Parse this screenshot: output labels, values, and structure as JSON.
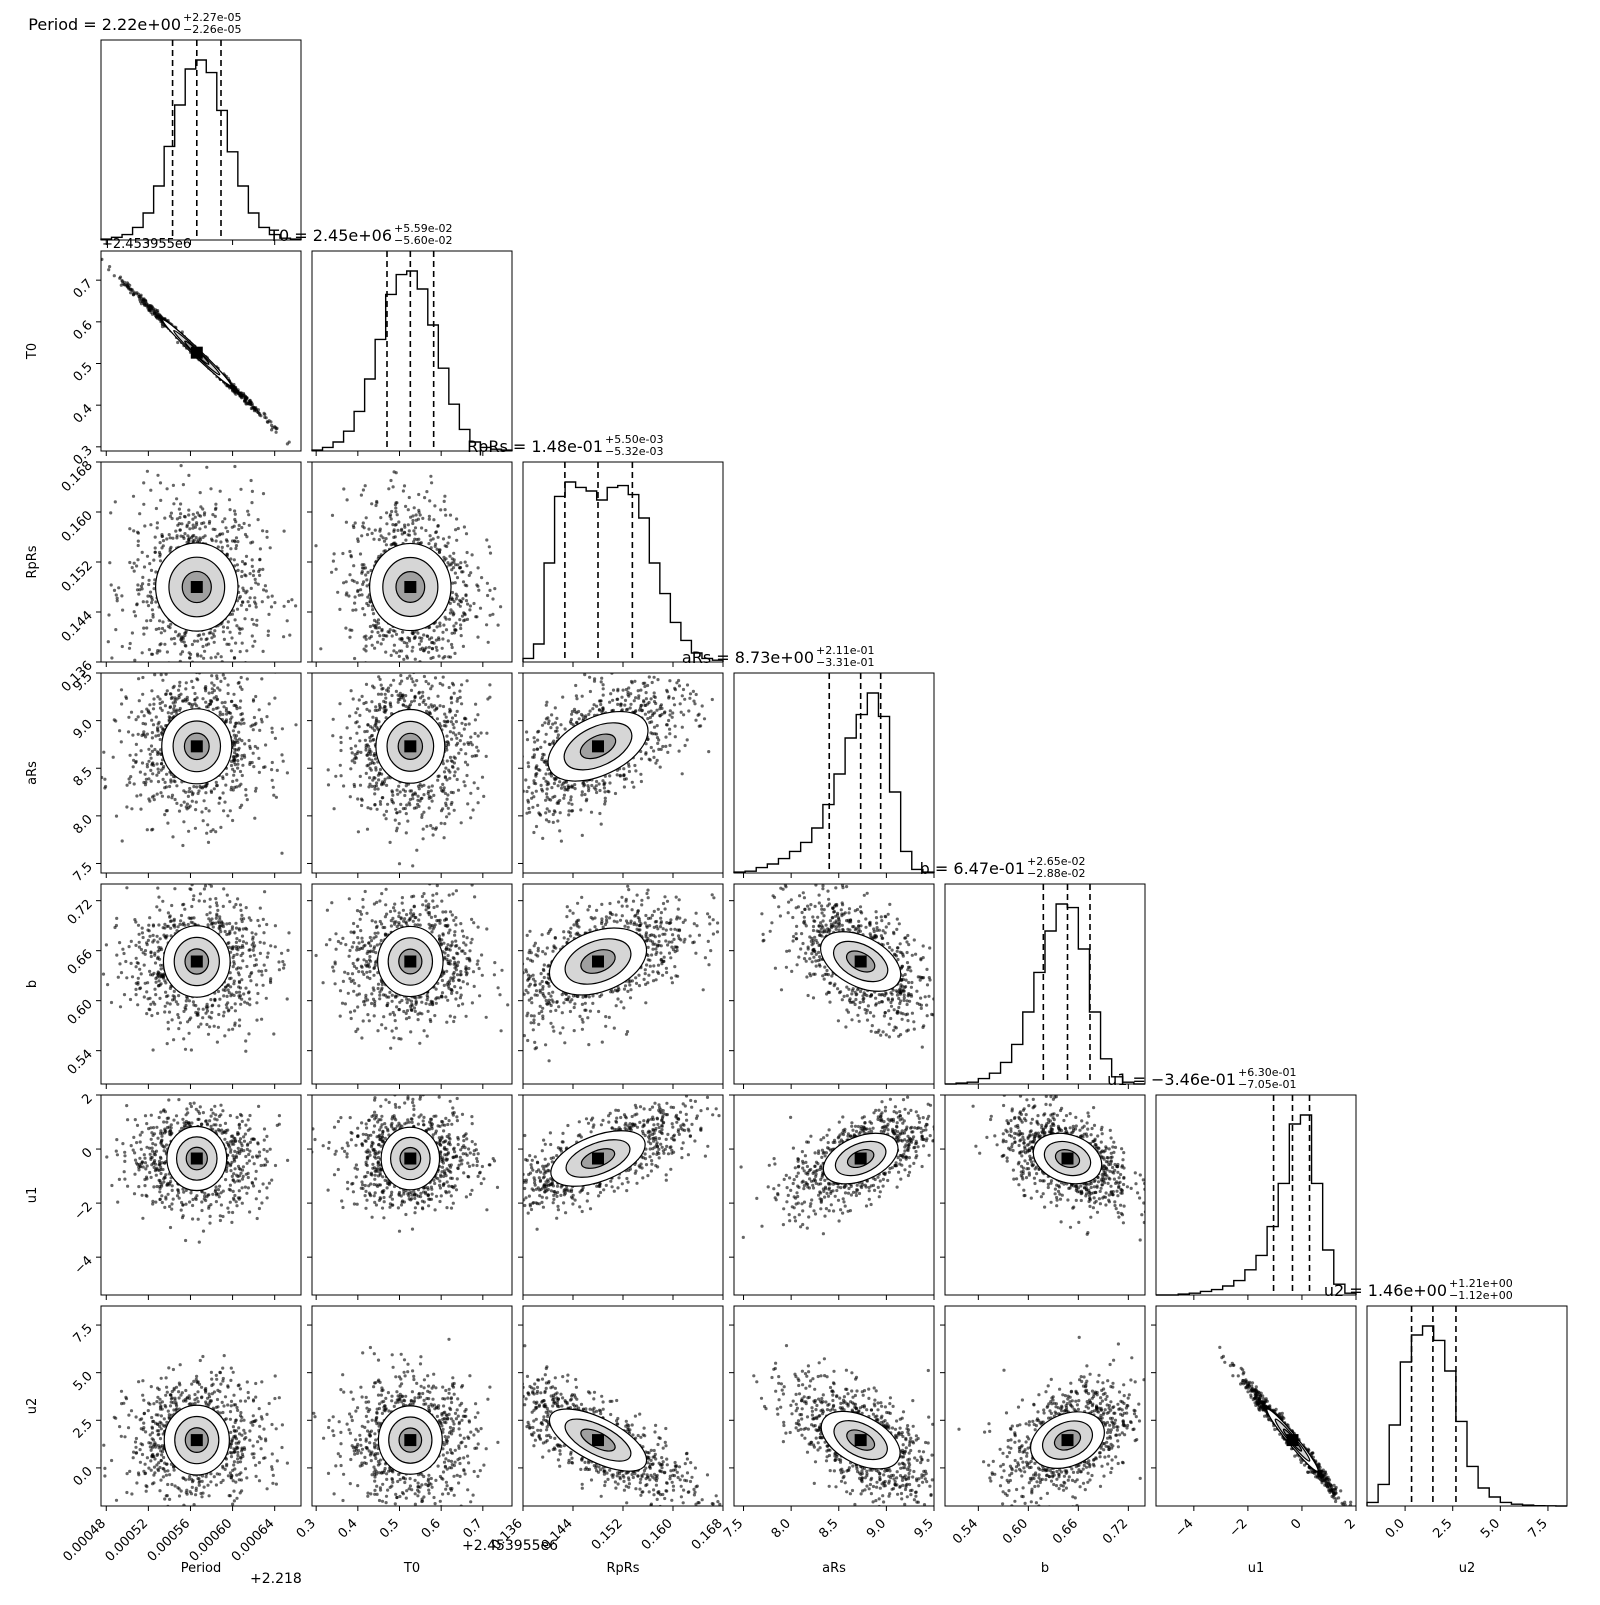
{
  "chart_data": {
    "type": "scatter",
    "subtype": "corner-plot",
    "parameters": [
      {
        "name": "Period",
        "title": "Period = 2.22e+00",
        "sup": "+2.27e-05",
        "sub": "−2.26e-05",
        "range": [
          0.000475,
          0.000665
        ],
        "ticks": [
          0.00048,
          0.00052,
          0.00056,
          0.0006,
          0.00064
        ],
        "ticklabels": [
          "0.00048",
          "0.00052",
          "0.00056",
          "0.00060",
          "0.00064"
        ],
        "offset": "+2.218",
        "offset_top": "+2.453955e6",
        "quantiles": [
          0.000543,
          0.000566,
          0.000589
        ],
        "hist": [
          0.005,
          0.015,
          0.03,
          0.07,
          0.15,
          0.3,
          0.52,
          0.75,
          0.95,
          1.0,
          0.93,
          0.72,
          0.49,
          0.3,
          0.15,
          0.07,
          0.03,
          0.01,
          0.005
        ]
      },
      {
        "name": "T0",
        "title": "T0 = 2.45e+06",
        "sup": "+5.59e-02",
        "sub": "−5.60e-02",
        "range": [
          0.29,
          0.77
        ],
        "ticks": [
          0.3,
          0.4,
          0.5,
          0.6,
          0.7
        ],
        "ticklabels": [
          "0.3",
          "0.4",
          "0.5",
          "0.6",
          "0.7"
        ],
        "offset": "+2.453955e6",
        "quantiles": [
          0.47,
          0.526,
          0.582
        ],
        "hist": [
          0.005,
          0.02,
          0.05,
          0.11,
          0.22,
          0.4,
          0.62,
          0.87,
          0.98,
          1.0,
          0.9,
          0.7,
          0.46,
          0.26,
          0.12,
          0.05,
          0.02,
          0.01,
          0.005
        ]
      },
      {
        "name": "RpRs",
        "title": "RpRs = 1.48e-01",
        "sup": "+5.50e-03",
        "sub": "−5.32e-03",
        "range": [
          0.136,
          0.168
        ],
        "ticks": [
          0.136,
          0.144,
          0.152,
          0.16,
          0.168
        ],
        "ticklabels": [
          "0.136",
          "0.144",
          "0.152",
          "0.160",
          "0.168"
        ],
        "quantiles": [
          0.1427,
          0.148,
          0.1535
        ],
        "hist": [
          0.02,
          0.1,
          0.55,
          0.92,
          1.0,
          0.97,
          0.95,
          0.9,
          0.97,
          0.98,
          0.93,
          0.8,
          0.55,
          0.38,
          0.22,
          0.12,
          0.05,
          0.02,
          0.01
        ]
      },
      {
        "name": "aRs",
        "title": "aRs = 8.73e+00",
        "sup": "+2.11e-01",
        "sub": "−3.31e-01",
        "range": [
          7.4,
          9.5
        ],
        "ticks": [
          7.5,
          8.0,
          8.5,
          9.0,
          9.5
        ],
        "ticklabels": [
          "7.5",
          "8.0",
          "8.5",
          "9.0",
          "9.5"
        ],
        "quantiles": [
          8.4,
          8.73,
          8.94
        ],
        "hist": [
          0.005,
          0.01,
          0.03,
          0.05,
          0.08,
          0.12,
          0.17,
          0.25,
          0.38,
          0.55,
          0.75,
          0.88,
          1.0,
          0.87,
          0.45,
          0.12,
          0.02,
          0.005
        ]
      },
      {
        "name": "b",
        "title": "b = 6.47e-01",
        "sup": "+2.65e-02",
        "sub": "−2.88e-02",
        "range": [
          0.5,
          0.74
        ],
        "ticks": [
          0.54,
          0.6,
          0.66,
          0.72
        ],
        "ticklabels": [
          "0.54",
          "0.60",
          "0.66",
          "0.72"
        ],
        "quantiles": [
          0.618,
          0.647,
          0.674
        ],
        "hist": [
          0.0,
          0.005,
          0.01,
          0.03,
          0.06,
          0.12,
          0.22,
          0.4,
          0.62,
          0.85,
          1.0,
          0.98,
          0.75,
          0.4,
          0.14,
          0.04,
          0.01,
          0.0
        ]
      },
      {
        "name": "u1",
        "title": "u1 = −3.46e-01",
        "sup": "+6.30e-01",
        "sub": "−7.05e-01",
        "range": [
          -5.4,
          2.0
        ],
        "ticks": [
          -4,
          -2,
          0,
          2
        ],
        "ticklabels": [
          "−4",
          "−2",
          "0",
          "2"
        ],
        "quantiles": [
          -1.05,
          -0.35,
          0.28
        ],
        "hist": [
          0.0,
          0.0,
          0.005,
          0.01,
          0.02,
          0.03,
          0.05,
          0.08,
          0.14,
          0.22,
          0.38,
          0.62,
          0.95,
          1.0,
          0.62,
          0.25,
          0.06,
          0.01
        ]
      },
      {
        "name": "u2",
        "title": "u2 = 1.46e+00",
        "sup": "+1.21e+00",
        "sub": "−1.12e+00",
        "range": [
          -2.0,
          8.5
        ],
        "ticks": [
          0.0,
          2.5,
          5.0,
          7.5
        ],
        "ticklabels": [
          "0.0",
          "2.5",
          "5.0",
          "7.5"
        ],
        "quantiles": [
          0.34,
          1.46,
          2.67
        ],
        "hist": [
          0.02,
          0.12,
          0.45,
          0.8,
          0.95,
          1.0,
          0.92,
          0.75,
          0.47,
          0.22,
          0.1,
          0.05,
          0.02,
          0.01,
          0.005,
          0.002,
          0.001,
          0.0
        ]
      }
    ],
    "correlations": {
      "T0|Period": -0.998,
      "aRs|RpRs": 0.62,
      "b|RpRs": 0.55,
      "b|aRs": -0.58,
      "u1|RpRs": 0.72,
      "u1|aRs": 0.6,
      "u1|b": -0.45,
      "u2|RpRs": -0.78,
      "u2|aRs": -0.6,
      "u2|b": 0.45,
      "u2|u1": -0.99
    }
  }
}
